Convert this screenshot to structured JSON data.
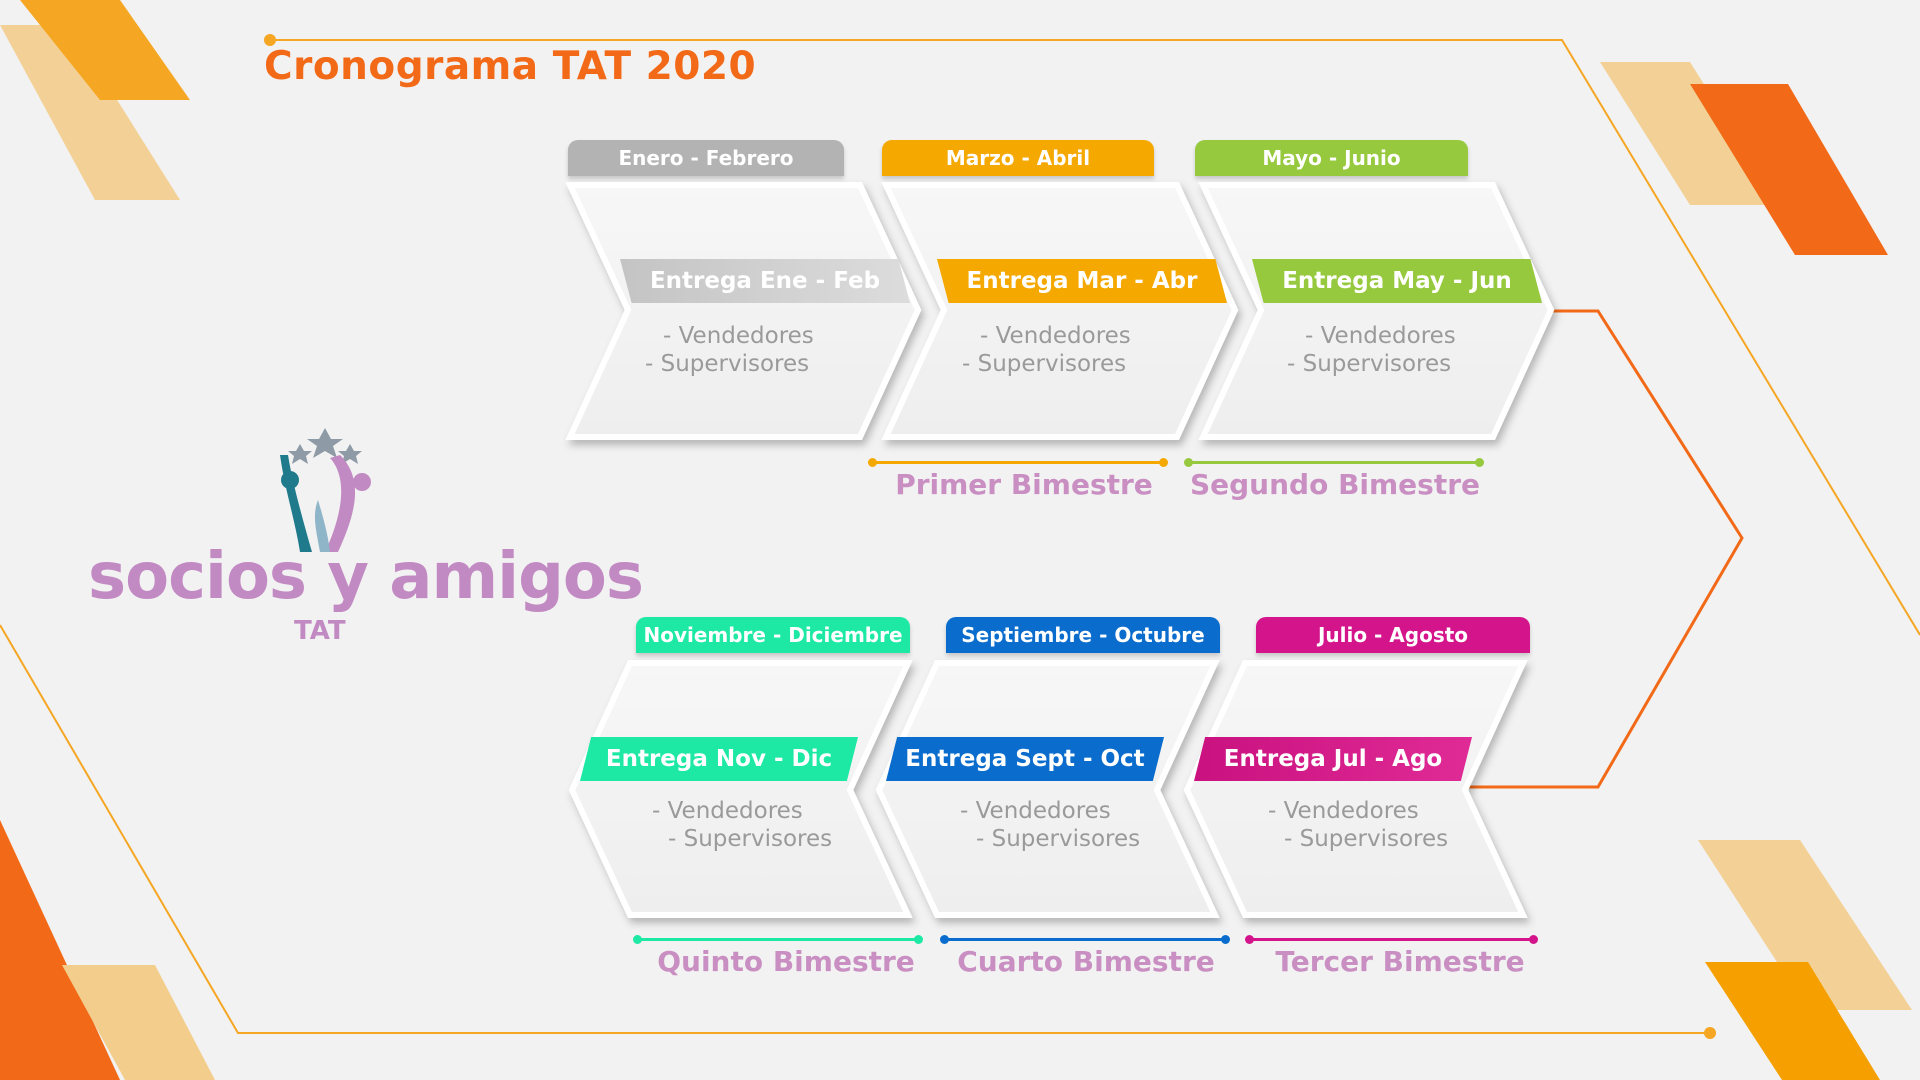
{
  "title": "Cronograma TAT 2020",
  "logo": {
    "name": "socios y amigos",
    "sub": "TAT"
  },
  "colors": {
    "accent": "#f26a18",
    "gold": "#f5a623",
    "gray": "#b3b3b3",
    "orange": "#f5a800",
    "green": "#96c93d",
    "turquoise": "#1de9a4",
    "blue": "#0a6ccc",
    "magenta": "#d4148a",
    "purple": "#c28ac2"
  },
  "stages": [
    {
      "tab": "Enero - Febrero",
      "ribbon": "Entrega Ene - Feb",
      "bullets": [
        "- Vendedores",
        "- Supervisores"
      ]
    },
    {
      "tab": "Marzo - Abril",
      "ribbon": "Entrega Mar - Abr",
      "bullets": [
        "- Vendedores",
        "- Supervisores"
      ],
      "bimestre": "Primer Bimestre"
    },
    {
      "tab": "Mayo - Junio",
      "ribbon": "Entrega May - Jun",
      "bullets": [
        "- Vendedores",
        "- Supervisores"
      ],
      "bimestre": "Segundo Bimestre"
    },
    {
      "tab": "Julio - Agosto",
      "ribbon": "Entrega Jul - Ago",
      "bullets": [
        "- Vendedores",
        "- Supervisores"
      ],
      "bimestre": "Tercer Bimestre"
    },
    {
      "tab": "Septiembre - Octubre",
      "ribbon": "Entrega Sept - Oct",
      "bullets": [
        "- Vendedores",
        "- Supervisores"
      ],
      "bimestre": "Cuarto Bimestre"
    },
    {
      "tab": "Noviembre - Diciembre",
      "ribbon": "Entrega Nov - Dic",
      "bullets": [
        "- Vendedores",
        "- Supervisores"
      ],
      "bimestre": "Quinto Bimestre"
    }
  ]
}
